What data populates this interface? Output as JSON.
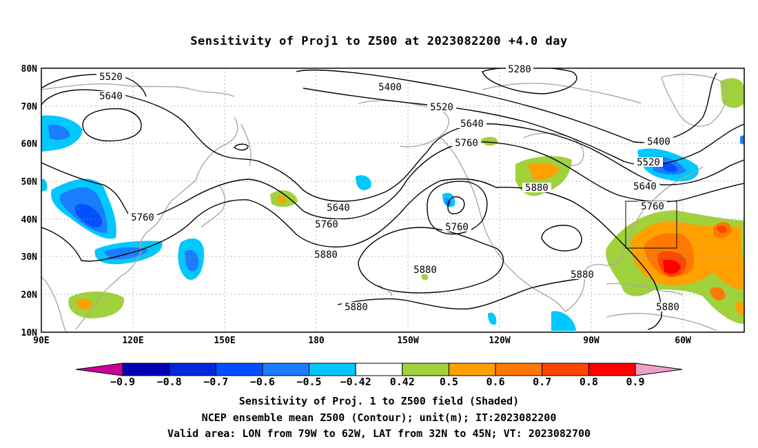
{
  "title": "Sensitivity of Proj1 to Z500 at 2023082200 +4.0 day",
  "map": {
    "lat_labels": [
      "80N",
      "70N",
      "60N",
      "50N",
      "40N",
      "30N",
      "20N",
      "10N"
    ],
    "lon_labels": [
      "90E",
      "120E",
      "150E",
      "180",
      "150W",
      "120W",
      "90W",
      "60W"
    ],
    "contour_labels": [
      {
        "id": "c5280",
        "text": "5280"
      },
      {
        "id": "c5400a",
        "text": "5400"
      },
      {
        "id": "c5400b",
        "text": "5400"
      },
      {
        "id": "c5520a",
        "text": "5520"
      },
      {
        "id": "c5520b",
        "text": "5520"
      },
      {
        "id": "c5520c",
        "text": "5520"
      },
      {
        "id": "c5640a",
        "text": "5640"
      },
      {
        "id": "c5640b",
        "text": "5640"
      },
      {
        "id": "c5640c",
        "text": "5640"
      },
      {
        "id": "c5640d",
        "text": "5640"
      },
      {
        "id": "c5760a",
        "text": "5760"
      },
      {
        "id": "c5760b",
        "text": "5760"
      },
      {
        "id": "c5760c",
        "text": "5760"
      },
      {
        "id": "c5760d",
        "text": "5760"
      },
      {
        "id": "c5760e",
        "text": "5760"
      },
      {
        "id": "c5880a",
        "text": "5880"
      },
      {
        "id": "c5880b",
        "text": "5880"
      },
      {
        "id": "c5880c",
        "text": "5880"
      },
      {
        "id": "c5880d",
        "text": "5880"
      },
      {
        "id": "c5880e",
        "text": "5880"
      },
      {
        "id": "c5880f",
        "text": "5880"
      }
    ],
    "valid_area": {
      "lon_from": "79W",
      "lon_to": "62W",
      "lat_from": "32N",
      "lat_to": "45N"
    }
  },
  "colorbar": {
    "labels": [
      "-0.9",
      "-0.8",
      "-0.7",
      "-0.6",
      "-0.5",
      "-0.42",
      "0.42",
      "0.5",
      "0.6",
      "0.7",
      "0.8",
      "0.9"
    ],
    "colors": [
      "#cc0099",
      "#0000b4",
      "#0028dc",
      "#0050ff",
      "#1a7dff",
      "#00c8ff",
      "#ffffff",
      "#a0d23c",
      "#ffa000",
      "#ff7800",
      "#ff4600",
      "#ff0000",
      "#f0a0c8"
    ]
  },
  "footer": {
    "line1": "Sensitivity of Proj. 1 to Z500 field (Shaded)",
    "line2": "NCEP ensemble mean Z500 (Contour); unit(m); IT:2023082200",
    "line3": "Valid area: LON from 79W to 62W, LAT from 32N to 45N; VT: 2023082700"
  }
}
